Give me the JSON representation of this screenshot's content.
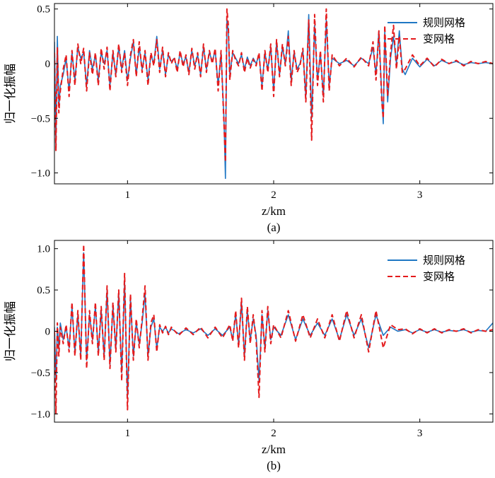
{
  "colors": {
    "solid": "#1f77c4",
    "dashed": "#e41a1c"
  },
  "chart_data": [
    {
      "type": "line",
      "subtitle": "(a)",
      "xlabel": "z/km",
      "ylabel": "归一化振幅",
      "xlim": [
        0.5,
        3.5
      ],
      "ylim": [
        -1.1,
        0.55
      ],
      "xticks": [
        1,
        2,
        3
      ],
      "yticks": [
        -1.0,
        -0.5,
        0,
        0.5
      ],
      "ytick_labels": [
        "−1.0",
        "−0.5",
        "0",
        "0.5"
      ],
      "legend": {
        "placement": "top-right"
      },
      "series": [
        {
          "name": "规则网格",
          "style": "solid",
          "x": [
            0.5,
            0.51,
            0.52,
            0.53,
            0.54,
            0.56,
            0.58,
            0.6,
            0.62,
            0.64,
            0.66,
            0.68,
            0.7,
            0.72,
            0.74,
            0.76,
            0.78,
            0.8,
            0.82,
            0.84,
            0.86,
            0.88,
            0.9,
            0.92,
            0.94,
            0.96,
            0.98,
            1.0,
            1.02,
            1.04,
            1.06,
            1.08,
            1.1,
            1.12,
            1.14,
            1.16,
            1.18,
            1.2,
            1.22,
            1.24,
            1.26,
            1.28,
            1.3,
            1.32,
            1.34,
            1.36,
            1.38,
            1.4,
            1.42,
            1.44,
            1.46,
            1.48,
            1.5,
            1.52,
            1.54,
            1.56,
            1.58,
            1.6,
            1.62,
            1.64,
            1.66,
            1.67,
            1.68,
            1.69,
            1.7,
            1.72,
            1.74,
            1.76,
            1.78,
            1.8,
            1.82,
            1.84,
            1.86,
            1.88,
            1.9,
            1.92,
            1.94,
            1.96,
            1.98,
            2.0,
            2.02,
            2.04,
            2.06,
            2.08,
            2.1,
            2.12,
            2.14,
            2.16,
            2.18,
            2.2,
            2.22,
            2.24,
            2.26,
            2.28,
            2.3,
            2.32,
            2.34,
            2.36,
            2.38,
            2.4,
            2.45,
            2.5,
            2.55,
            2.6,
            2.65,
            2.68,
            2.7,
            2.72,
            2.74,
            2.75,
            2.76,
            2.78,
            2.8,
            2.82,
            2.84,
            2.86,
            2.88,
            2.9,
            2.95,
            3.0,
            3.05,
            3.1,
            3.15,
            3.2,
            3.25,
            3.3,
            3.35,
            3.4,
            3.45,
            3.5
          ],
          "y": [
            0.2,
            -0.75,
            0.25,
            -0.4,
            -0.2,
            -0.1,
            0.05,
            -0.25,
            0.1,
            -0.15,
            0.15,
            0.05,
            0.1,
            -0.2,
            0.12,
            -0.05,
            0.08,
            -0.15,
            0.1,
            0.0,
            0.12,
            -0.2,
            0.1,
            -0.1,
            0.15,
            -0.05,
            0.12,
            -0.15,
            0.05,
            0.2,
            -0.1,
            0.15,
            -0.05,
            0.1,
            -0.15,
            0.08,
            0.0,
            0.25,
            -0.05,
            0.12,
            -0.1,
            0.08,
            0.02,
            0.05,
            -0.05,
            0.1,
            0.0,
            0.06,
            -0.08,
            0.12,
            -0.02,
            0.08,
            -0.1,
            0.15,
            -0.05,
            0.1,
            0.02,
            0.12,
            -0.2,
            0.1,
            -0.5,
            -1.05,
            0.4,
            0.3,
            -0.1,
            0.1,
            0.05,
            0.0,
            0.08,
            -0.05,
            0.06,
            -0.02,
            0.05,
            0.0,
            0.08,
            -0.2,
            0.1,
            -0.05,
            0.15,
            -0.25,
            0.2,
            -0.1,
            0.15,
            0.0,
            0.3,
            -0.15,
            0.1,
            -0.05,
            0.0,
            0.12,
            -0.3,
            0.45,
            -0.5,
            0.35,
            -0.15,
            0.1,
            -0.3,
            0.4,
            -0.2,
            0.05,
            0.0,
            0.03,
            -0.02,
            0.05,
            0.0,
            0.15,
            -0.1,
            0.3,
            -0.3,
            -0.55,
            0.3,
            -0.35,
            0.05,
            0.25,
            0.0,
            0.3,
            -0.05,
            -0.1,
            0.05,
            -0.03,
            0.04,
            -0.02,
            0.03,
            0.0,
            0.02,
            -0.01,
            0.01,
            0.0,
            0.01,
            0.0
          ]
        },
        {
          "name": "变网格",
          "style": "dashed",
          "x": [
            0.5,
            0.51,
            0.52,
            0.53,
            0.54,
            0.56,
            0.58,
            0.6,
            0.62,
            0.64,
            0.66,
            0.68,
            0.7,
            0.72,
            0.74,
            0.76,
            0.78,
            0.8,
            0.82,
            0.84,
            0.86,
            0.88,
            0.9,
            0.92,
            0.94,
            0.96,
            0.98,
            1.0,
            1.02,
            1.04,
            1.06,
            1.08,
            1.1,
            1.12,
            1.14,
            1.16,
            1.18,
            1.2,
            1.22,
            1.24,
            1.26,
            1.28,
            1.3,
            1.32,
            1.34,
            1.36,
            1.38,
            1.4,
            1.42,
            1.44,
            1.46,
            1.48,
            1.5,
            1.52,
            1.54,
            1.56,
            1.58,
            1.6,
            1.62,
            1.64,
            1.66,
            1.67,
            1.68,
            1.69,
            1.7,
            1.72,
            1.74,
            1.76,
            1.78,
            1.8,
            1.82,
            1.84,
            1.86,
            1.88,
            1.9,
            1.92,
            1.94,
            1.96,
            1.98,
            2.0,
            2.02,
            2.04,
            2.06,
            2.08,
            2.1,
            2.12,
            2.14,
            2.16,
            2.18,
            2.2,
            2.22,
            2.24,
            2.26,
            2.28,
            2.3,
            2.32,
            2.34,
            2.36,
            2.38,
            2.4,
            2.45,
            2.5,
            2.55,
            2.6,
            2.65,
            2.68,
            2.7,
            2.72,
            2.74,
            2.75,
            2.76,
            2.78,
            2.8,
            2.82,
            2.84,
            2.86,
            2.88,
            2.9,
            2.95,
            3.0,
            3.05,
            3.1,
            3.15,
            3.2,
            3.25,
            3.3,
            3.35,
            3.4,
            3.45,
            3.5
          ],
          "y": [
            0.1,
            -0.8,
            0.15,
            -0.45,
            -0.25,
            -0.05,
            0.08,
            -0.3,
            0.12,
            -0.2,
            0.18,
            0.0,
            0.14,
            -0.25,
            0.1,
            -0.1,
            0.1,
            -0.2,
            0.14,
            -0.05,
            0.15,
            -0.25,
            0.12,
            -0.12,
            0.18,
            -0.08,
            0.1,
            -0.2,
            0.08,
            0.22,
            -0.12,
            0.2,
            -0.08,
            0.12,
            -0.2,
            0.1,
            -0.02,
            0.22,
            -0.08,
            0.15,
            -0.12,
            0.1,
            0.0,
            0.06,
            -0.08,
            0.12,
            -0.03,
            0.08,
            -0.1,
            0.14,
            -0.05,
            0.1,
            -0.12,
            0.18,
            -0.08,
            0.12,
            0.0,
            0.14,
            -0.25,
            0.12,
            -0.55,
            -0.9,
            0.5,
            0.35,
            -0.15,
            0.12,
            0.03,
            -0.02,
            0.1,
            -0.08,
            0.05,
            -0.04,
            0.04,
            -0.02,
            0.1,
            -0.25,
            0.12,
            -0.08,
            0.18,
            -0.3,
            0.22,
            -0.12,
            0.18,
            -0.02,
            0.25,
            -0.2,
            0.12,
            -0.08,
            -0.02,
            0.14,
            -0.35,
            0.4,
            -0.7,
            0.45,
            -0.2,
            0.12,
            -0.35,
            0.5,
            -0.25,
            0.08,
            -0.02,
            0.05,
            -0.03,
            0.06,
            -0.02,
            0.2,
            -0.15,
            0.3,
            -0.35,
            -0.5,
            0.35,
            -0.3,
            0.1,
            0.35,
            -0.05,
            0.25,
            -0.08,
            -0.05,
            0.08,
            -0.02,
            0.05,
            -0.03,
            0.04,
            0.0,
            0.03,
            -0.02,
            0.02,
            0.0,
            0.02,
            0.0
          ]
        }
      ]
    },
    {
      "type": "line",
      "subtitle": "(b)",
      "xlabel": "z/km",
      "ylabel": "归一化振幅",
      "xlim": [
        0.5,
        3.5
      ],
      "ylim": [
        -1.1,
        1.1
      ],
      "xticks": [
        1,
        2,
        3
      ],
      "yticks": [
        -1.0,
        -0.5,
        0,
        0.5,
        1.0
      ],
      "ytick_labels": [
        "−1.0",
        "−0.5",
        "0",
        "0.5",
        "1.0"
      ],
      "legend": {
        "placement": "top-right"
      },
      "series": [
        {
          "name": "规则网格",
          "style": "solid",
          "x": [
            0.5,
            0.51,
            0.52,
            0.53,
            0.54,
            0.56,
            0.58,
            0.6,
            0.62,
            0.64,
            0.66,
            0.68,
            0.7,
            0.72,
            0.74,
            0.76,
            0.78,
            0.8,
            0.82,
            0.84,
            0.86,
            0.88,
            0.9,
            0.92,
            0.94,
            0.96,
            0.98,
            1.0,
            1.02,
            1.04,
            1.06,
            1.08,
            1.1,
            1.12,
            1.14,
            1.16,
            1.18,
            1.2,
            1.22,
            1.24,
            1.26,
            1.28,
            1.3,
            1.35,
            1.4,
            1.45,
            1.5,
            1.55,
            1.6,
            1.65,
            1.7,
            1.72,
            1.74,
            1.76,
            1.78,
            1.8,
            1.82,
            1.84,
            1.86,
            1.88,
            1.9,
            1.92,
            1.94,
            1.96,
            1.98,
            2.0,
            2.05,
            2.1,
            2.15,
            2.2,
            2.25,
            2.3,
            2.35,
            2.4,
            2.45,
            2.5,
            2.55,
            2.6,
            2.65,
            2.7,
            2.75,
            2.8,
            2.85,
            2.9,
            2.95,
            3.0,
            3.05,
            3.1,
            3.15,
            3.2,
            3.25,
            3.3,
            3.35,
            3.4,
            3.45,
            3.5
          ],
          "y": [
            0.05,
            -0.6,
            0.05,
            -0.2,
            0.1,
            -0.1,
            0.05,
            -0.2,
            0.3,
            -0.25,
            0.2,
            -0.3,
            0.95,
            -0.35,
            0.2,
            -0.1,
            0.3,
            -0.25,
            0.25,
            -0.3,
            0.5,
            -0.4,
            0.3,
            -0.2,
            0.45,
            -0.5,
            0.6,
            -0.8,
            0.4,
            -0.3,
            0.1,
            -0.15,
            0.1,
            0.45,
            -0.3,
            0.05,
            0.15,
            -0.2,
            0.05,
            0.0,
            0.05,
            -0.02,
            0.03,
            -0.03,
            0.02,
            -0.02,
            0.03,
            -0.05,
            0.03,
            -0.05,
            0.05,
            -0.1,
            0.2,
            -0.15,
            0.35,
            -0.3,
            0.25,
            -0.1,
            0.15,
            -0.05,
            -0.6,
            0.2,
            -0.2,
            0.25,
            -0.1,
            0.05,
            -0.05,
            0.2,
            -0.1,
            0.15,
            -0.05,
            0.1,
            -0.05,
            0.15,
            -0.1,
            0.2,
            -0.05,
            0.15,
            -0.2,
            0.2,
            -0.05,
            0.05,
            0.0,
            0.02,
            -0.02,
            0.02,
            -0.01,
            0.02,
            -0.01,
            0.01,
            0.0,
            0.02,
            -0.01,
            0.01,
            0.0,
            0.1
          ]
        },
        {
          "name": "变网格",
          "style": "dashed",
          "x": [
            0.5,
            0.51,
            0.52,
            0.53,
            0.54,
            0.56,
            0.58,
            0.6,
            0.62,
            0.64,
            0.66,
            0.68,
            0.7,
            0.72,
            0.74,
            0.76,
            0.78,
            0.8,
            0.82,
            0.84,
            0.86,
            0.88,
            0.9,
            0.92,
            0.94,
            0.96,
            0.98,
            1.0,
            1.02,
            1.04,
            1.06,
            1.08,
            1.1,
            1.12,
            1.14,
            1.16,
            1.18,
            1.2,
            1.22,
            1.24,
            1.26,
            1.28,
            1.3,
            1.35,
            1.4,
            1.45,
            1.5,
            1.55,
            1.6,
            1.65,
            1.7,
            1.72,
            1.74,
            1.76,
            1.78,
            1.8,
            1.82,
            1.84,
            1.86,
            1.88,
            1.9,
            1.92,
            1.94,
            1.96,
            1.98,
            2.0,
            2.05,
            2.1,
            2.15,
            2.2,
            2.25,
            2.3,
            2.35,
            2.4,
            2.45,
            2.5,
            2.55,
            2.6,
            2.65,
            2.7,
            2.75,
            2.8,
            2.85,
            2.9,
            2.95,
            3.0,
            3.05,
            3.1,
            3.15,
            3.2,
            3.25,
            3.3,
            3.35,
            3.4,
            3.45,
            3.5
          ],
          "y": [
            0.0,
            -1.0,
            0.1,
            -0.3,
            0.05,
            -0.15,
            0.08,
            -0.25,
            0.35,
            -0.3,
            0.25,
            -0.35,
            1.05,
            -0.45,
            0.25,
            -0.15,
            0.35,
            -0.3,
            0.3,
            -0.35,
            0.55,
            -0.45,
            0.35,
            -0.25,
            0.5,
            -0.6,
            0.7,
            -0.95,
            0.45,
            -0.35,
            0.15,
            -0.2,
            0.15,
            0.55,
            -0.35,
            0.1,
            0.2,
            -0.25,
            0.08,
            -0.02,
            0.06,
            -0.04,
            0.05,
            -0.05,
            0.04,
            -0.04,
            0.05,
            -0.08,
            0.05,
            -0.08,
            0.08,
            -0.12,
            0.25,
            -0.2,
            0.4,
            -0.35,
            0.3,
            -0.15,
            0.2,
            -0.1,
            -0.8,
            0.25,
            -0.25,
            0.3,
            -0.15,
            0.08,
            -0.08,
            0.25,
            -0.12,
            0.2,
            -0.08,
            0.15,
            -0.08,
            0.2,
            -0.12,
            0.25,
            -0.08,
            0.2,
            -0.25,
            0.25,
            -0.2,
            0.08,
            0.02,
            0.03,
            -0.03,
            0.03,
            -0.02,
            0.03,
            -0.02,
            0.02,
            0.0,
            0.03,
            -0.02,
            0.02,
            0.0,
            0.02
          ]
        }
      ]
    }
  ]
}
